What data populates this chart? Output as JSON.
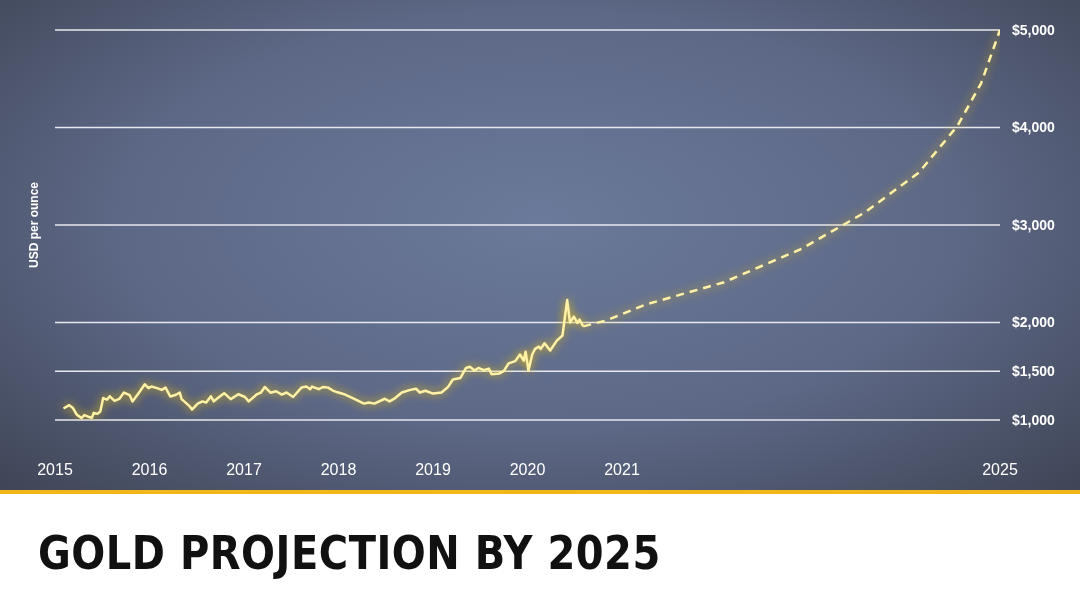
{
  "chart_data": {
    "type": "line",
    "title": "GOLD PROJECTION BY 2025",
    "ylabel": "USD per ounce",
    "xlim": [
      2015,
      2025
    ],
    "xticks": [
      2015,
      2016,
      2017,
      2018,
      2019,
      2020,
      2021,
      2025
    ],
    "ylim": [
      1000,
      5000
    ],
    "yticks": [
      {
        "value": 1000,
        "label": "$1,000"
      },
      {
        "value": 1500,
        "label": "$1,500"
      },
      {
        "value": 2000,
        "label": "$2,000"
      },
      {
        "value": 3000,
        "label": "$3,000"
      },
      {
        "value": 4000,
        "label": "$4,000"
      },
      {
        "value": 5000,
        "label": "$5,000"
      }
    ],
    "grid": "y",
    "marker": "none",
    "series": [
      {
        "color": "#fff1a6",
        "line_style": "solid",
        "x": [
          2015.09,
          2015.15,
          2015.19,
          2015.23,
          2015.28,
          2015.31,
          2015.35,
          2015.39,
          2015.41,
          2015.45,
          2015.48,
          2015.51,
          2015.55,
          2015.58,
          2015.63,
          2015.68,
          2015.73,
          2015.79,
          2015.82,
          2015.89,
          2015.95,
          2015.99,
          2016.02,
          2016.08,
          2016.13,
          2016.17,
          2016.22,
          2016.28,
          2016.32,
          2016.34,
          2016.42,
          2016.45,
          2016.51,
          2016.56,
          2016.6,
          2016.65,
          2016.68,
          2016.73,
          2016.79,
          2016.86,
          2016.94,
          2017.01,
          2017.05,
          2017.14,
          2017.18,
          2017.22,
          2017.28,
          2017.34,
          2017.4,
          2017.45,
          2017.52,
          2017.61,
          2017.66,
          2017.7,
          2017.72,
          2017.79,
          2017.84,
          2017.89,
          2017.94,
          2017.99,
          2018.07,
          2018.15,
          2018.27,
          2018.32,
          2018.38,
          2018.49,
          2018.54,
          2018.6,
          2018.67,
          2018.76,
          2018.82,
          2018.86,
          2018.92,
          2019.0,
          2019.09,
          2019.16,
          2019.21,
          2019.29,
          2019.35,
          2019.39,
          2019.44,
          2019.48,
          2019.54,
          2019.59,
          2019.62,
          2019.7,
          2019.75,
          2019.8,
          2019.87,
          2019.92,
          2019.96,
          2019.98,
          2020.01,
          2020.05,
          2020.08,
          2020.12,
          2020.14,
          2020.18,
          2020.24,
          2020.31,
          2020.37,
          2020.42,
          2020.45,
          2020.49,
          2020.53,
          2020.55,
          2020.59
        ],
        "values": [
          1118,
          1152,
          1123,
          1055,
          1020,
          1050,
          1034,
          1023,
          1073,
          1063,
          1089,
          1225,
          1209,
          1243,
          1196,
          1216,
          1282,
          1254,
          1191,
          1282,
          1366,
          1327,
          1343,
          1327,
          1309,
          1332,
          1241,
          1259,
          1282,
          1214,
          1145,
          1107,
          1168,
          1191,
          1180,
          1243,
          1191,
          1230,
          1275,
          1214,
          1264,
          1236,
          1191,
          1266,
          1282,
          1339,
          1280,
          1295,
          1261,
          1282,
          1236,
          1334,
          1343,
          1316,
          1343,
          1316,
          1339,
          1332,
          1302,
          1284,
          1261,
          1225,
          1168,
          1180,
          1168,
          1218,
          1191,
          1225,
          1282,
          1309,
          1321,
          1282,
          1300,
          1271,
          1282,
          1340,
          1415,
          1431,
          1534,
          1546,
          1507,
          1534,
          1511,
          1527,
          1470,
          1476,
          1504,
          1581,
          1604,
          1672,
          1608,
          1700,
          1507,
          1672,
          1729,
          1752,
          1729,
          1787,
          1713,
          1814,
          1867,
          2230,
          2000,
          2060,
          1995,
          2030,
          1960
        ]
      },
      {
        "color": "#fff1a6",
        "line_style": "dashed",
        "x": [
          2020.59,
          2020.84,
          2021.25,
          2022.08,
          2022.9,
          2023.56,
          2024.14,
          2024.55,
          2024.8,
          2025
        ],
        "values": [
          1960,
          2023,
          2184,
          2413,
          2756,
          3123,
          3536,
          4017,
          4453,
          5000
        ]
      }
    ]
  }
}
